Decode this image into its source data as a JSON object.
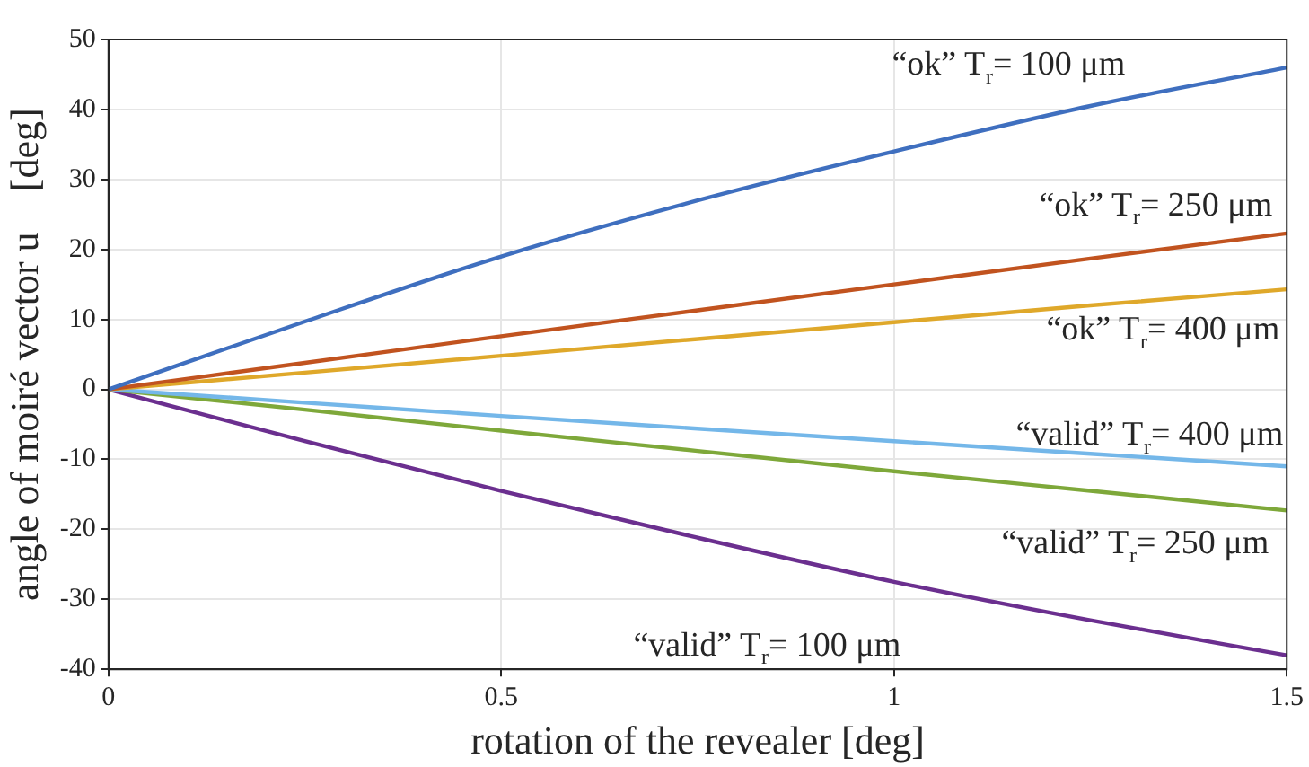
{
  "chart_data": {
    "type": "line",
    "xlabel": "rotation of the revealer [deg]",
    "ylabel": "angle of moiré vector u⃗ [deg]",
    "x": [
      0,
      0.25,
      0.5,
      0.75,
      1,
      1.25,
      1.5
    ],
    "series": [
      {
        "name": "“ok” T$_{r}$= 100 μm",
        "color": "#3f6fbf",
        "values": [
          0,
          9.7,
          19,
          27,
          34,
          40.5,
          46
        ]
      },
      {
        "name": "“ok” T$_{r}$= 250 μm",
        "color": "#c1531f",
        "values": [
          0,
          3.8,
          7.6,
          11.3,
          15,
          18.7,
          22.3
        ]
      },
      {
        "name": "“ok” T$_{r}$= 400 μm",
        "color": "#dfa82a",
        "values": [
          0,
          2.4,
          4.8,
          7.2,
          9.6,
          12,
          14.3
        ]
      },
      {
        "name": "“valid” T$_{r}$= 400 μm",
        "color": "#74b7e9",
        "values": [
          0,
          -1.9,
          -3.8,
          -5.6,
          -7.4,
          -9.2,
          -11
        ]
      },
      {
        "name": "“valid” T$_{r}$= 250 μm",
        "color": "#7ea83a",
        "values": [
          0,
          -2.9,
          -5.9,
          -8.8,
          -11.7,
          -14.5,
          -17.3
        ]
      },
      {
        "name": "“valid” T$_{r}$= 100 μm",
        "color": "#6b2f8f",
        "values": [
          0,
          -7.4,
          -14.5,
          -21.2,
          -27.5,
          -33,
          -38
        ]
      }
    ],
    "xlim": [
      0,
      1.5
    ],
    "xticks": [
      0,
      0.5,
      1,
      1.5
    ],
    "ylim": [
      -40,
      50
    ],
    "yticks": [
      -40,
      -30,
      -20,
      -10,
      0,
      10,
      20,
      30,
      40,
      50
    ],
    "grid": true,
    "legend": false,
    "marker": "none",
    "line_style": "solid"
  }
}
